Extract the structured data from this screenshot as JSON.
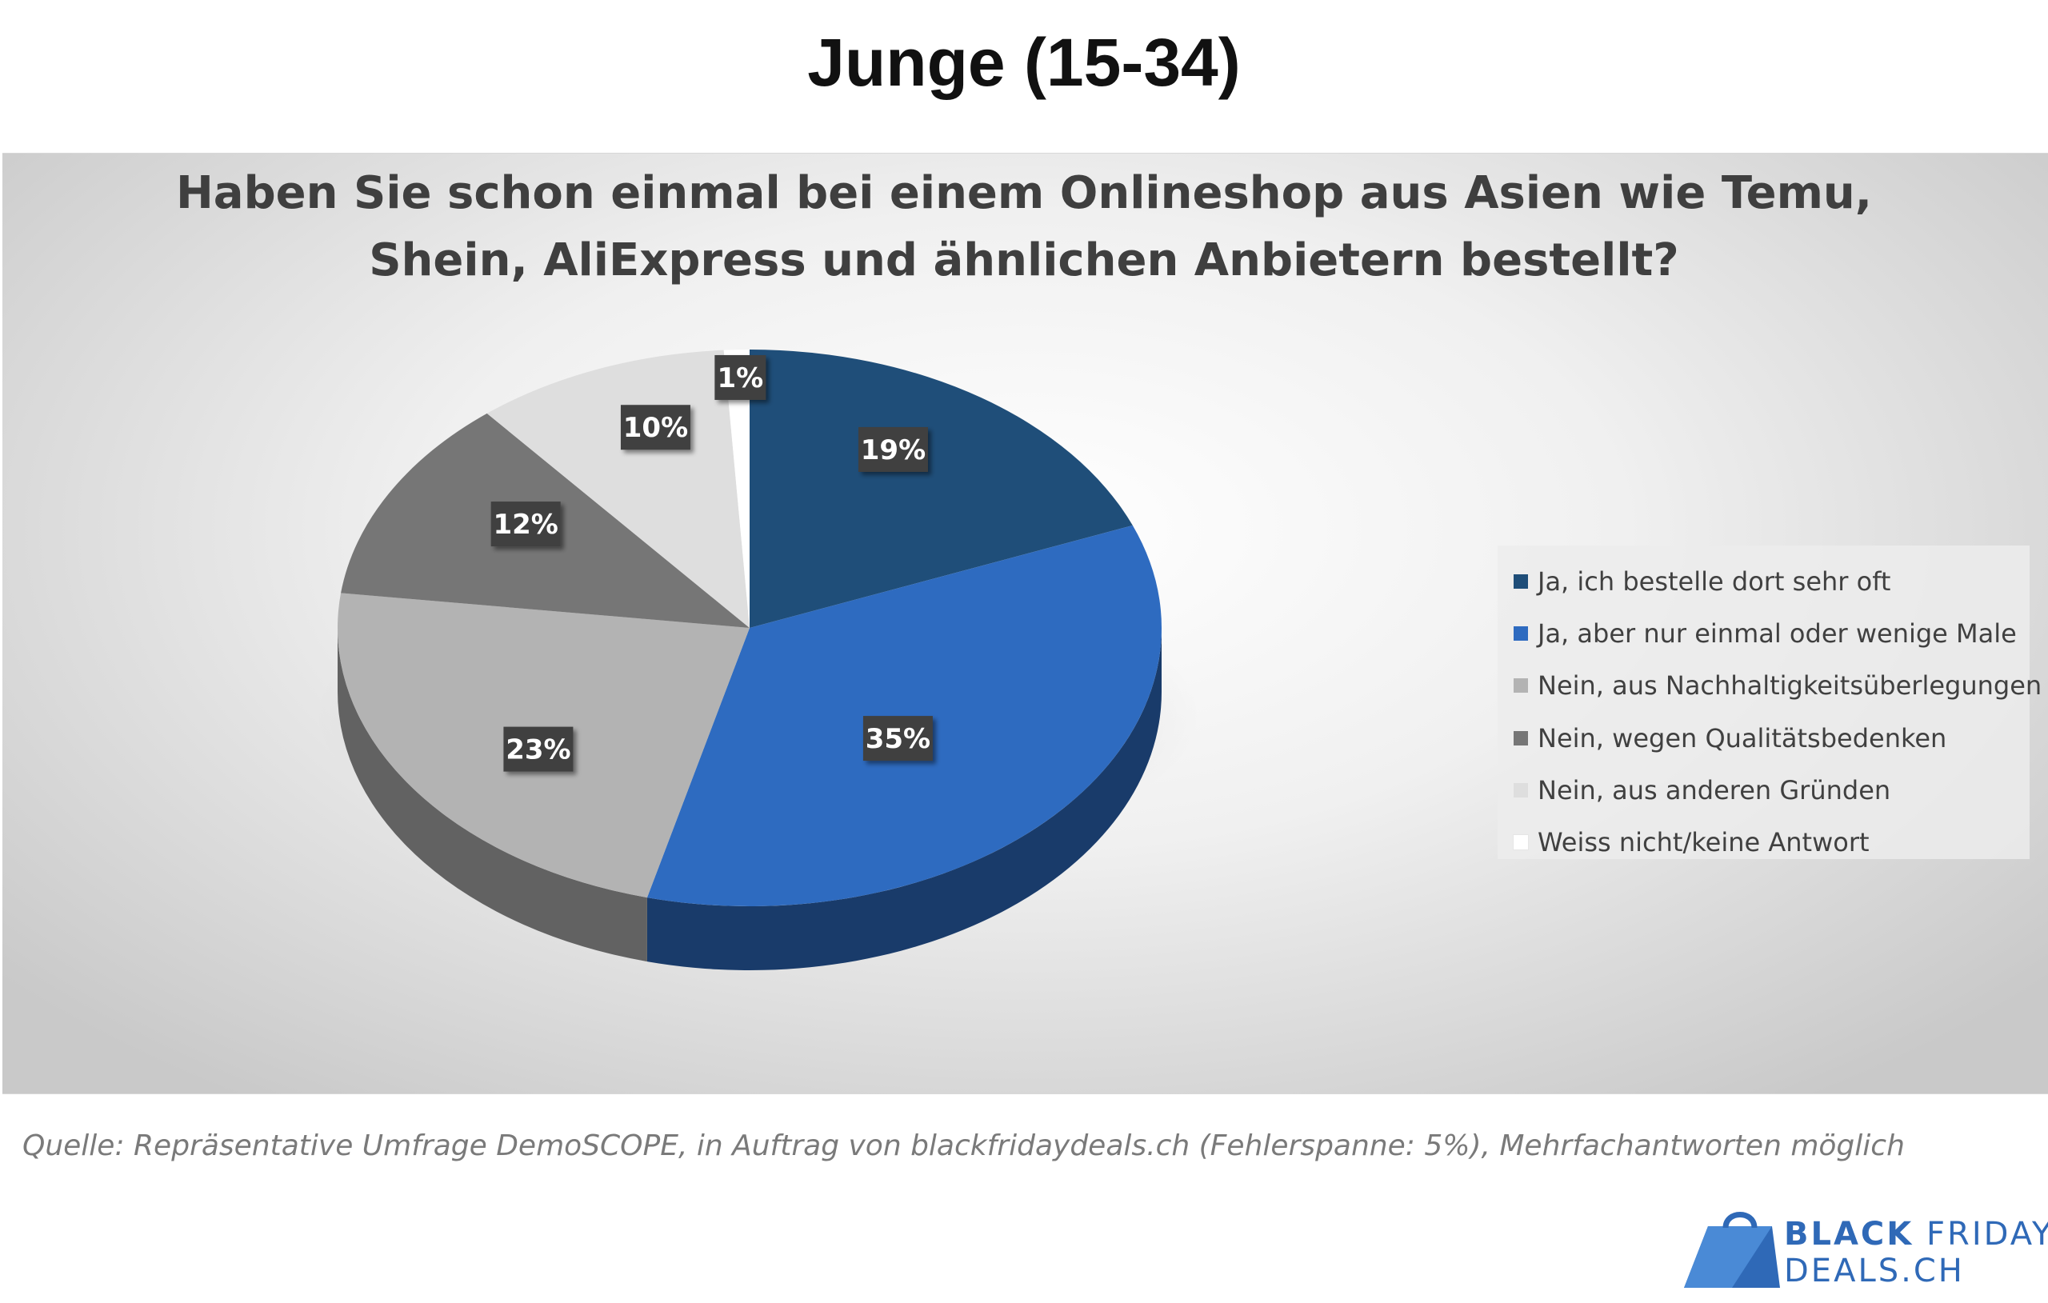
{
  "header": {
    "title": "Junge (15-34)"
  },
  "chart_data": {
    "type": "pie",
    "title_lines": [
      "Haben Sie schon einmal bei einem Onlineshop aus Asien wie Temu,",
      "Shein, AliExpress und ähnlichen Anbietern bestellt?"
    ],
    "slices": [
      {
        "name": "Ja, ich bestelle dort sehr oft",
        "value": 19,
        "label": "19%",
        "color": "#1f4e79"
      },
      {
        "name": "Ja, aber nur einmal oder wenige Male",
        "value": 35,
        "label": "35%",
        "color": "#2e6bc0"
      },
      {
        "name": "Nein, aus Nachhaltigkeitsüberlegungen",
        "value": 23,
        "label": "23%",
        "color": "#b3b3b3"
      },
      {
        "name": "Nein, wegen Qualitätsbedenken",
        "value": 12,
        "label": "12%",
        "color": "#767676"
      },
      {
        "name": "Nein, aus anderen Gründen",
        "value": 10,
        "label": "10%",
        "color": "#dedede"
      },
      {
        "name": "Weiss nicht/keine Antwort",
        "value": 1,
        "label": "1%",
        "color": "#ffffff"
      }
    ],
    "legend_position": "right"
  },
  "footer": {
    "source": "Quelle: Repräsentative Umfrage DemoSCOPE, in Auftrag von blackfridaydeals.ch (Fehlerspanne: 5%), Mehrfachantworten möglich"
  },
  "brand": {
    "line1_bold": "BLACK",
    "line1_regular": "FRIDAY",
    "line2": "DEALS.CH",
    "color": "#2f69b7"
  }
}
